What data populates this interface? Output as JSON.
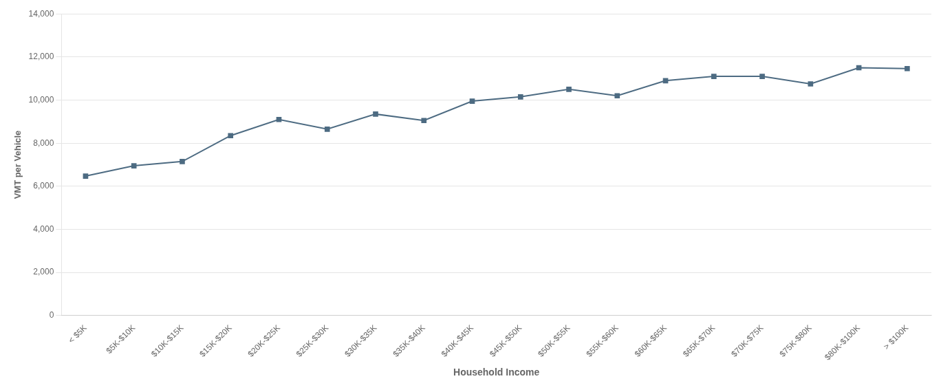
{
  "chart_data": {
    "type": "line",
    "categories": [
      "< $5K",
      "$5K-$10K",
      "$10K-$15K",
      "$15K-$20K",
      "$20K-$25K",
      "$25K-$30K",
      "$30K-$35K",
      "$35K-$40K",
      "$40K-$45K",
      "$45K-$50K",
      "$50K-$55K",
      "$55K-$60K",
      "$60K-$65K",
      "$65K-$70K",
      "$70K-$75K",
      "$75K-$80K",
      "$80K-$100K",
      "> $100K"
    ],
    "values": [
      6472,
      6950,
      7150,
      8350,
      9100,
      8650,
      9350,
      9050,
      9950,
      10150,
      10500,
      10200,
      10900,
      11100,
      11100,
      10750,
      11500,
      11462
    ],
    "color": "#4d6b82",
    "marker": "square",
    "xlabel": "Household Income",
    "ylabel": "VMT per Vehicle",
    "ylim": [
      0,
      14000
    ],
    "yticks": [
      0,
      {
        "value": 2000,
        "label": "2,000"
      },
      {
        "value": 4000,
        "label": "4,000"
      },
      {
        "value": 6000,
        "label": "6,000"
      },
      {
        "value": 8000,
        "label": "8,000"
      },
      {
        "value": 10000,
        "label": "10,000"
      },
      {
        "value": 12000,
        "label": "12,000"
      },
      {
        "value": 14000,
        "label": "14,000"
      }
    ],
    "grid": true
  }
}
